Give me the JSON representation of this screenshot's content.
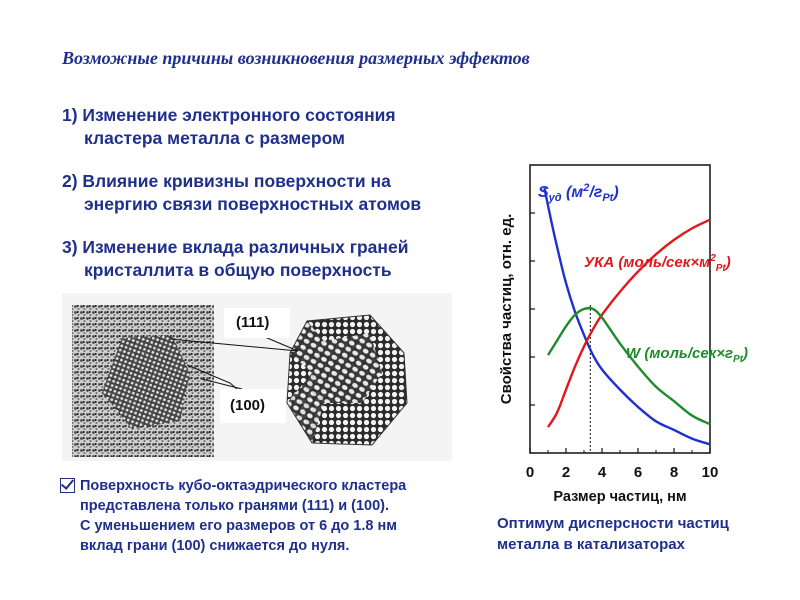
{
  "slide": {
    "title": "Возможные причины возникновения размерных эффектов",
    "items": [
      {
        "line1": "1) Изменение электронного состояния",
        "line2": "кластера металла с размером"
      },
      {
        "line1": "2) Влияние кривизны поверхности на",
        "line2": "энергию связи поверхностных атомов"
      },
      {
        "line1": "3) Изменение вклада различных граней",
        "line2": "кристаллита в общую поверхность"
      }
    ],
    "micrograph": {
      "label_111": "(111)",
      "label_100": "(100)"
    },
    "note": {
      "lines": [
        "Поверхность кубо-октаэдрического кластера",
        "представлена только гранями (111) и (100).",
        "С уменьшением  его размеров  от 6 до 1.8 нм",
        "вклад грани (100) снижается до нуля."
      ]
    },
    "caption": {
      "line1": "Оптимум дисперсности частиц",
      "line2": "металла в катализаторах"
    },
    "colors": {
      "text_blue": "#1e2f8c",
      "s_curve": "#1f2fd0",
      "yka_curve": "#e01818",
      "w_curve": "#1e8c2a"
    }
  },
  "chart_data": {
    "type": "line",
    "xlabel": "Размер частиц,  нм",
    "ylabel": "Свойства частиц, отн. ед.",
    "xlim": [
      0,
      10
    ],
    "ylim": [
      0,
      1
    ],
    "x_ticks": [
      "0",
      "2",
      "4",
      "6",
      "8",
      "10"
    ],
    "optimum_line_x": 3.35,
    "series": [
      {
        "name": "Sуд (м2/гPt)",
        "label_main": "S",
        "label_sub": "уд",
        "label_rest": " (м",
        "label_sup": "2",
        "label_rest2": "/г",
        "label_sub2": "Pt",
        "label_close": ")",
        "color": "#1f2fd0",
        "x": [
          0.8,
          1.2,
          1.6,
          2.0,
          2.5,
          3.0,
          3.5,
          4.0,
          5.0,
          6.0,
          7.0,
          8.0,
          9.0,
          10.0
        ],
        "y": [
          0.92,
          0.8,
          0.69,
          0.59,
          0.49,
          0.41,
          0.34,
          0.29,
          0.22,
          0.16,
          0.11,
          0.08,
          0.05,
          0.03
        ]
      },
      {
        "name": "УКА (моль/сек×м2Pt)",
        "label_main": "УКА (моль/сек×м",
        "label_sup": "2",
        "label_sub": "Pt",
        "label_close": ")",
        "color": "#e01818",
        "x": [
          1.0,
          1.5,
          2.0,
          2.5,
          3.0,
          3.5,
          4.0,
          5.0,
          6.0,
          7.0,
          8.0,
          9.0,
          10.0
        ],
        "y": [
          0.09,
          0.14,
          0.22,
          0.3,
          0.37,
          0.43,
          0.48,
          0.56,
          0.63,
          0.69,
          0.74,
          0.78,
          0.81
        ]
      },
      {
        "name": "W (моль/сек×гPt)",
        "label_main": "W (моль/сек×г",
        "label_sub": "Pt",
        "label_close": ")",
        "color": "#1e8c2a",
        "x": [
          1.0,
          1.5,
          2.0,
          2.5,
          3.0,
          3.5,
          4.0,
          5.0,
          6.0,
          7.0,
          8.0,
          9.0,
          10.0
        ],
        "y": [
          0.34,
          0.39,
          0.44,
          0.48,
          0.5,
          0.5,
          0.47,
          0.38,
          0.3,
          0.23,
          0.18,
          0.13,
          0.1
        ]
      }
    ]
  }
}
